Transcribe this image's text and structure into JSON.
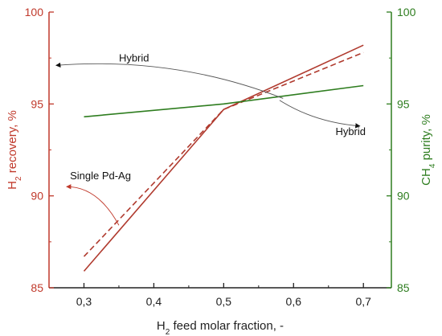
{
  "chart_data": {
    "type": "line",
    "x": [
      0.3,
      0.5,
      0.7
    ],
    "xlim": [
      0.25,
      0.74
    ],
    "x_ticks": [
      "0,3",
      "0,4",
      "0,5",
      "0,6",
      "0,7"
    ],
    "x_tick_values": [
      0.3,
      0.4,
      0.5,
      0.6,
      0.7
    ],
    "xlabel": {
      "main": "H",
      "sub": "2",
      "rest": " feed molar fraction, -"
    },
    "y_left": {
      "label": {
        "main": "H",
        "sub": "2",
        "rest": " recovery, %"
      },
      "lim": [
        85,
        100
      ],
      "ticks": [
        "85",
        "90",
        "95",
        "100"
      ],
      "tick_values": [
        85,
        90,
        95,
        100
      ],
      "color": "#c0392b"
    },
    "y_right": {
      "label": {
        "main": "CH",
        "sub": "4",
        "rest": " purity, %"
      },
      "lim": [
        85,
        100
      ],
      "ticks": [
        "85",
        "90",
        "95",
        "100"
      ],
      "tick_values": [
        85,
        90,
        95,
        100
      ],
      "color": "#2e7d1f"
    },
    "series": [
      {
        "axis": "left",
        "style": "solid",
        "color": "#b03a2e",
        "values": [
          85.9,
          94.7,
          98.2
        ]
      },
      {
        "axis": "left",
        "style": "dashed",
        "color": "#b03a2e",
        "values": [
          86.7,
          94.7,
          97.8
        ]
      },
      {
        "axis": "right",
        "style": "solid",
        "color": "#2e7d1f",
        "values": [
          94.3,
          95.0,
          96.0
        ]
      }
    ],
    "annotations": [
      {
        "text": "Hybrid",
        "x": 0.35,
        "y": 97.3,
        "axis": "left"
      },
      {
        "text": "Hybrid",
        "x": 0.66,
        "y": 93.3,
        "axis": "left"
      },
      {
        "text": "Single Pd-Ag",
        "x": 0.28,
        "y": 90.9,
        "axis": "left"
      }
    ],
    "arrows": [
      {
        "from": [
          0.585,
          95.3
        ],
        "to": [
          0.26,
          97.1
        ],
        "axis": "left",
        "ctrl": [
          0.43,
          97.6
        ]
      },
      {
        "from": [
          0.58,
          95.2
        ],
        "to": [
          0.695,
          93.8
        ],
        "axis": "left",
        "ctrl": [
          0.63,
          94.0
        ]
      },
      {
        "from": [
          0.35,
          88.4
        ],
        "to": [
          0.275,
          90.5
        ],
        "axis": "left",
        "ctrl": [
          0.32,
          90.5
        ]
      }
    ],
    "grid": false
  }
}
